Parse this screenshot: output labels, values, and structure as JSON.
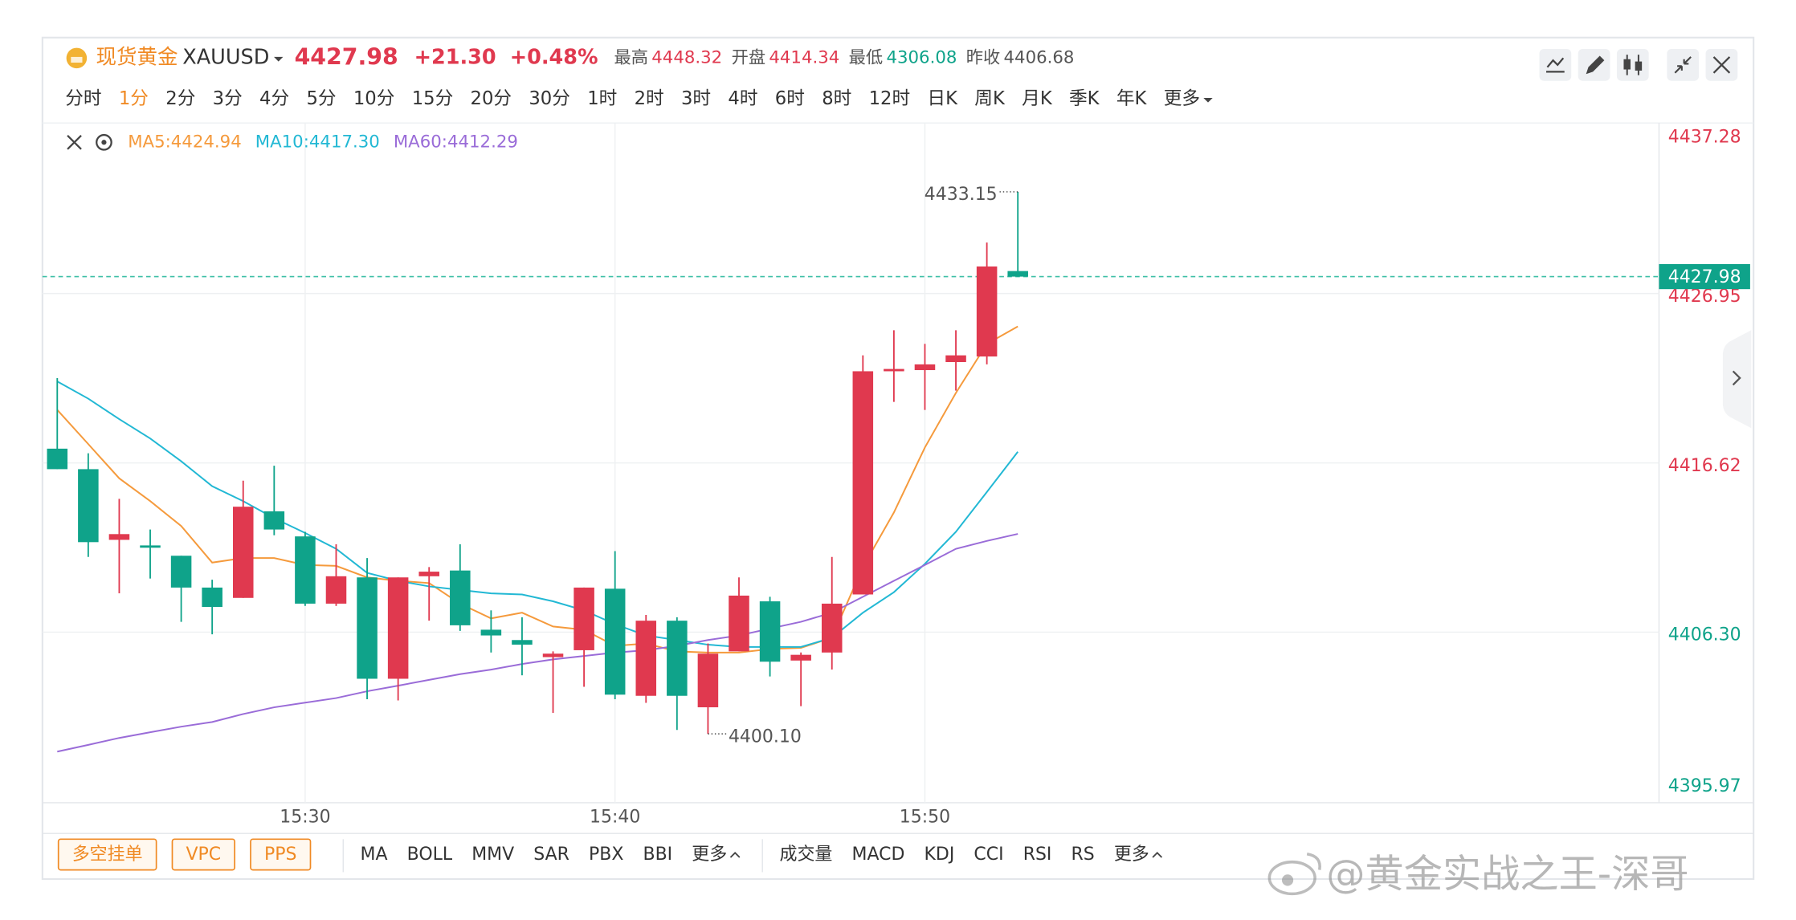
{
  "header": {
    "name": "现货黄金",
    "symbol": "XAUUSD",
    "price": "4427.98",
    "change": "+21.30",
    "change_pct": "+0.48%",
    "high_label": "最高",
    "high": "4448.32",
    "open_label": "开盘",
    "open": "4414.34",
    "low_label": "最低",
    "low": "4306.08",
    "prev_close_label": "昨收",
    "prev_close": "4406.68"
  },
  "timeframes": {
    "items": [
      "分时",
      "1分",
      "2分",
      "3分",
      "4分",
      "5分",
      "10分",
      "15分",
      "20分",
      "30分",
      "1时",
      "2时",
      "3时",
      "4时",
      "6时",
      "8时",
      "12时",
      "日K",
      "周K",
      "月K",
      "季K",
      "年K",
      "更多"
    ],
    "active": 1
  },
  "chart_data": {
    "type": "candlestick",
    "x": [
      "15:22",
      "15:23",
      "15:24",
      "15:25",
      "15:26",
      "15:27",
      "15:28",
      "15:29",
      "15:30",
      "15:31",
      "15:32",
      "15:33",
      "15:34",
      "15:35",
      "15:36",
      "15:37",
      "15:38",
      "15:39",
      "15:40",
      "15:41",
      "15:42",
      "15:43",
      "15:44",
      "15:45",
      "15:46",
      "15:47",
      "15:48",
      "15:49",
      "15:50",
      "15:51",
      "15:52",
      "15:53"
    ],
    "open": [
      4417.49,
      4416.24,
      4411.93,
      4411.59,
      4410.96,
      4409.02,
      4408.39,
      4413.67,
      4412.14,
      4408.04,
      4409.64,
      4403.46,
      4409.71,
      4410.06,
      4406.45,
      4405.82,
      4404.78,
      4405.2,
      4408.95,
      4402.42,
      4407.0,
      4401.72,
      4405.13,
      4408.18,
      4404.57,
      4405.06,
      4408.6,
      4422.21,
      4422.28,
      4422.77,
      4423.11,
      4428.32
    ],
    "high": [
      4421.79,
      4417.21,
      4414.43,
      4412.56,
      4410.96,
      4409.5,
      4415.54,
      4416.45,
      4412.42,
      4411.66,
      4410.82,
      4409.64,
      4410.27,
      4411.66,
      4407.63,
      4407.21,
      4405.13,
      4409.02,
      4411.24,
      4407.35,
      4407.21,
      4405.61,
      4409.64,
      4408.46,
      4405.06,
      4410.89,
      4423.18,
      4424.71,
      4423.88,
      4424.71,
      4430.06,
      4433.15
    ],
    "low": [
      4416.24,
      4410.89,
      4408.67,
      4409.57,
      4406.93,
      4406.17,
      4408.39,
      4412.21,
      4407.9,
      4407.9,
      4402.21,
      4402.14,
      4407.0,
      4406.38,
      4405.06,
      4403.67,
      4401.38,
      4402.97,
      4402.21,
      4401.99,
      4400.34,
      4400.1,
      4405.13,
      4403.6,
      4401.79,
      4404.02,
      4408.6,
      4420.34,
      4419.85,
      4421.03,
      4422.63,
      4427.98
    ],
    "close": [
      4416.24,
      4411.79,
      4412.28,
      4411.45,
      4409.02,
      4407.84,
      4413.95,
      4412.56,
      4408.04,
      4409.71,
      4403.46,
      4409.64,
      4409.99,
      4406.72,
      4406.1,
      4405.54,
      4404.99,
      4409.02,
      4402.49,
      4407.0,
      4402.42,
      4404.99,
      4408.53,
      4404.5,
      4404.92,
      4408.04,
      4422.21,
      4422.35,
      4422.63,
      4423.18,
      4428.6,
      4427.98
    ],
    "up_color": "#e0394f",
    "down_color": "#0fa38a",
    "series": [
      {
        "name": "MA5",
        "label": "MA5:4424.94",
        "color": "#f59a3c",
        "values": [
          4419.85,
          4417.77,
          4415.68,
          4414.29,
          4412.77,
          4410.54,
          4410.82,
          4410.82,
          4410.4,
          4410.34,
          4409.64,
          4409.43,
          4409.29,
          4408.04,
          4407.14,
          4407.49,
          4406.65,
          4406.45,
          4405.47,
          4405.61,
          4405.13,
          4405.06,
          4405.06,
          4405.27,
          4405.34,
          4405.96,
          4410.27,
          4413.6,
          4417.56,
          4420.89,
          4423.88,
          4424.94
        ]
      },
      {
        "name": "MA10",
        "label": "MA10:4417.30",
        "color": "#22b8d4",
        "values": [
          4421.59,
          4420.54,
          4419.29,
          4418.11,
          4416.72,
          4415.2,
          4414.29,
          4413.25,
          4412.35,
          4411.38,
          4409.92,
          4409.43,
          4409.09,
          4408.88,
          4408.67,
          4408.6,
          4408.18,
          4407.63,
          4406.79,
          4406.1,
          4405.82,
          4405.54,
          4405.4,
          4405.4,
          4405.4,
          4405.96,
          4407.49,
          4408.74,
          4410.47,
          4412.42,
          4414.85,
          4417.3
        ]
      },
      {
        "name": "MA60",
        "label": "MA60:4412.29",
        "color": "#9a6cd8",
        "values": [
          4399.02,
          4399.43,
          4399.85,
          4400.2,
          4400.54,
          4400.82,
          4401.31,
          4401.72,
          4402.0,
          4402.28,
          4402.7,
          4403.04,
          4403.39,
          4403.74,
          4404.02,
          4404.36,
          4404.64,
          4404.85,
          4405.06,
          4405.2,
          4405.47,
          4405.82,
          4406.1,
          4406.52,
          4406.93,
          4407.49,
          4408.46,
          4409.43,
          4410.4,
          4411.38,
          4411.86,
          4412.29
        ]
      }
    ],
    "ylim": [
      4395.97,
      4437.28
    ],
    "yticks": [
      4437.28,
      4426.95,
      4416.62,
      {
        "value": 4406.3,
        "label": "4406.30"
      },
      4395.97
    ],
    "xticks": [
      "15:30",
      "15:40",
      "15:50"
    ],
    "annotations": [
      {
        "value": 4433.15,
        "label": "4433.15"
      },
      {
        "value": 4400.1,
        "label": "4400.10"
      }
    ],
    "grid": true
  },
  "toolbar": {
    "buttons": [
      "多空挂单",
      "VPC",
      "PPS"
    ],
    "main_indicators": [
      "MA",
      "BOLL",
      "MMV",
      "SAR",
      "PBX",
      "BBI",
      "更多"
    ],
    "sub_indicators": [
      "成交量",
      "MACD",
      "KDJ",
      "CCI",
      "RSI",
      "RS",
      "更多"
    ]
  },
  "watermark": "@黄金实战之王-深哥"
}
